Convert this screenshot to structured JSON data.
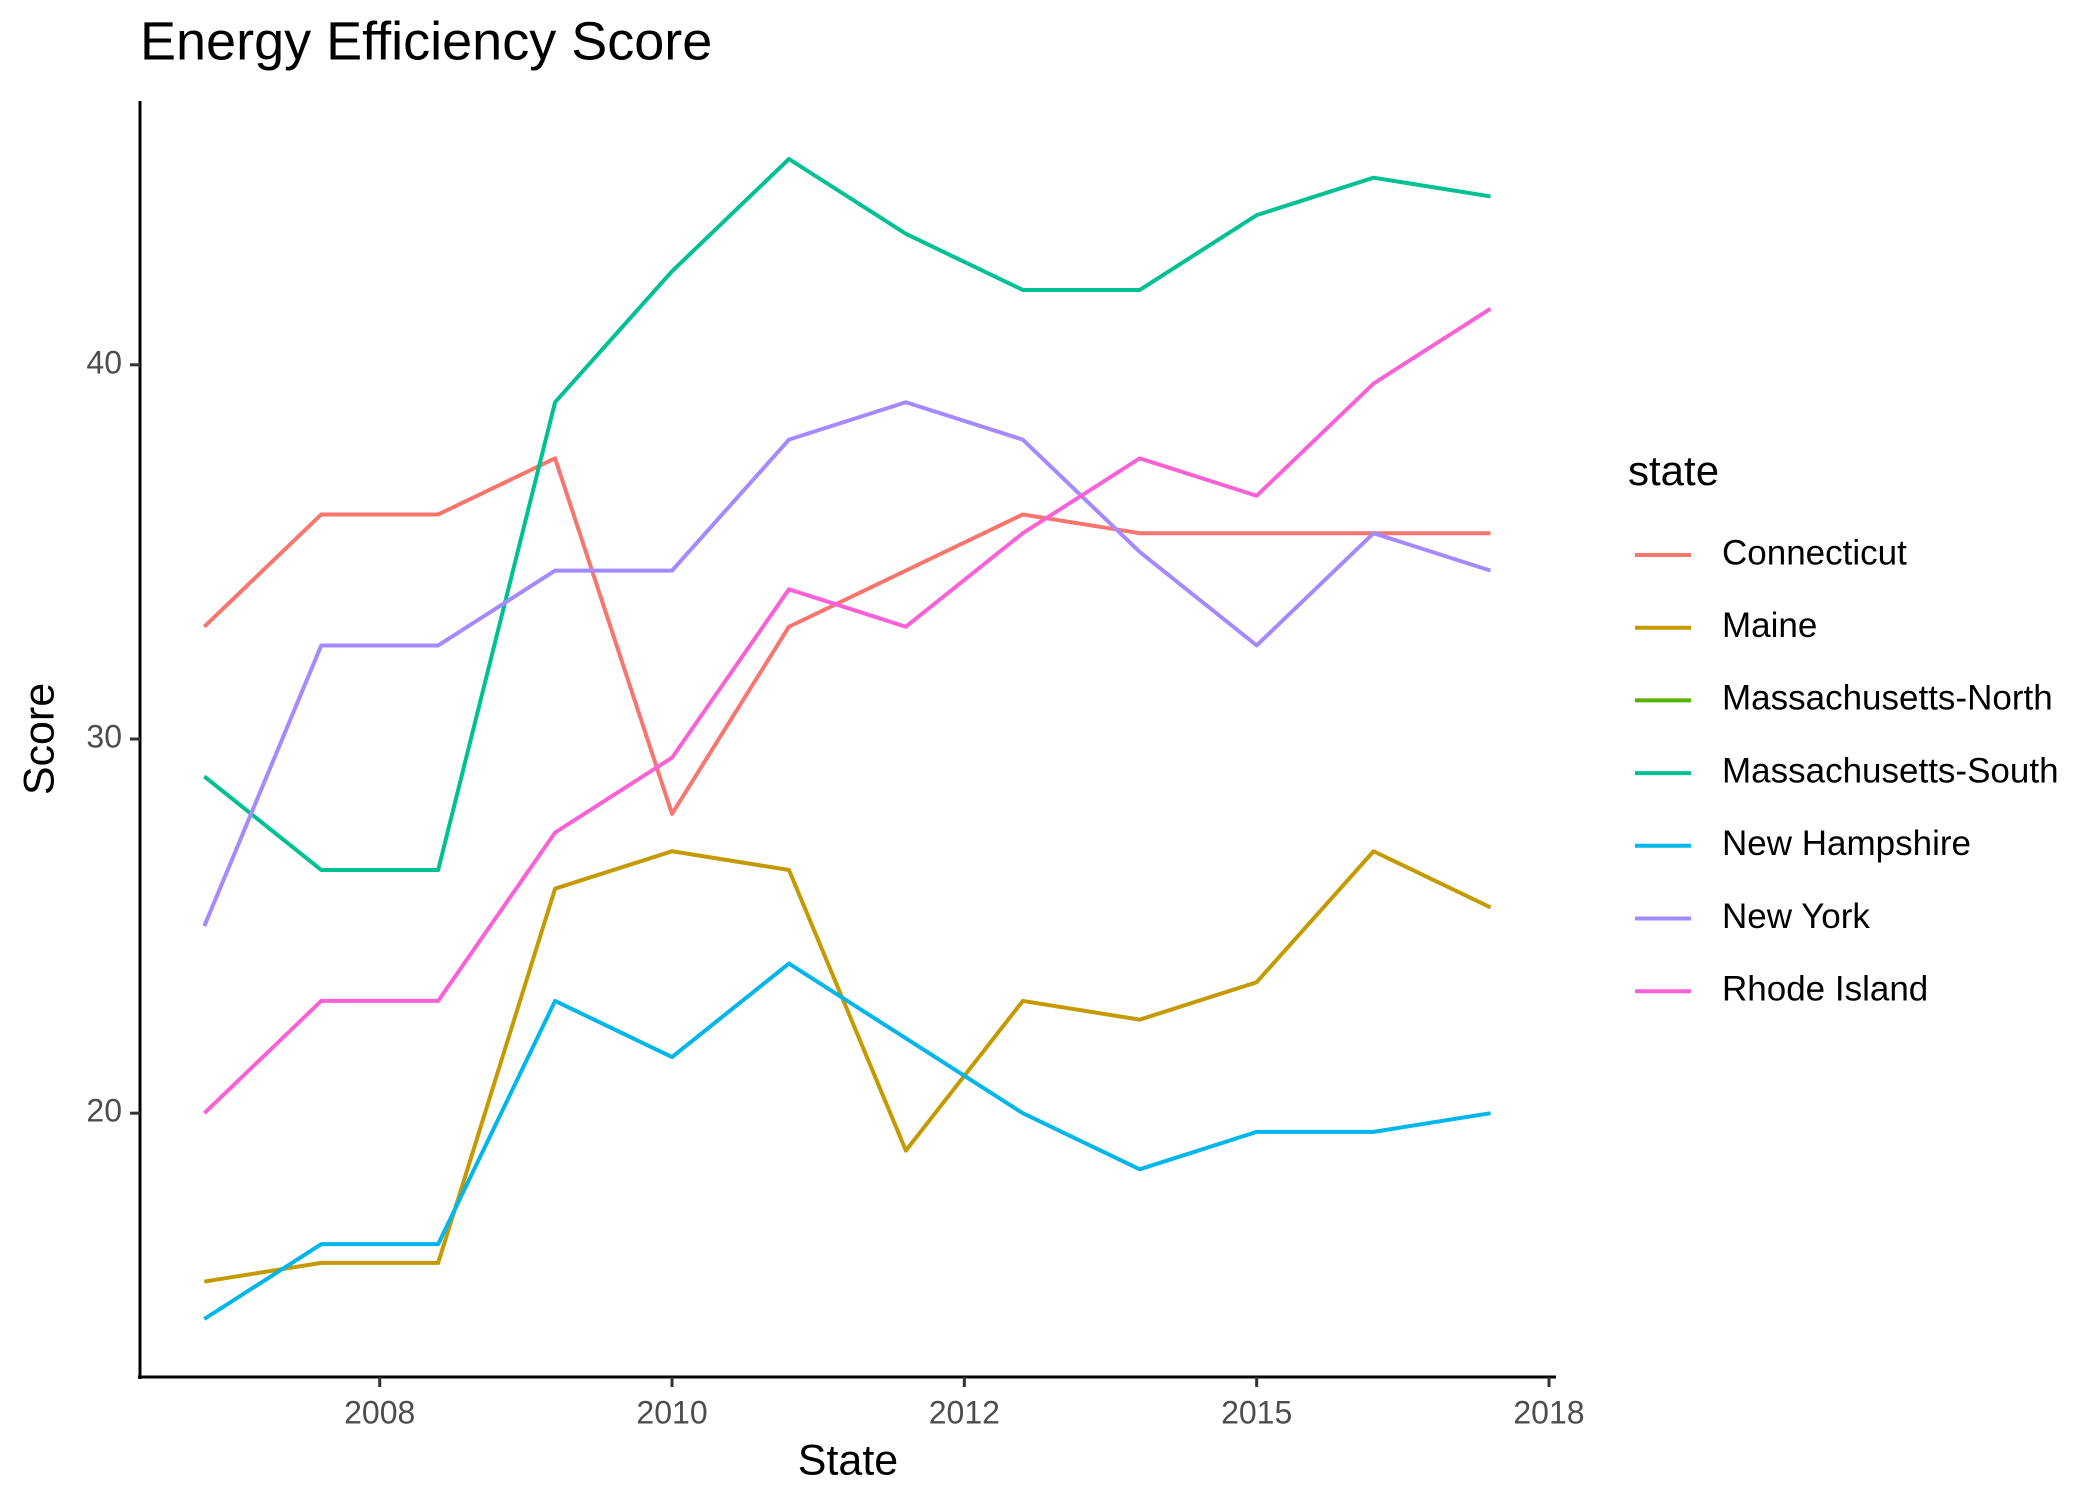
{
  "chart_data": {
    "type": "line",
    "title": "Energy Efficiency Score",
    "xlabel": "State",
    "ylabel": "Score",
    "legend_title": "state",
    "legend": "right",
    "x": [
      0,
      1,
      2,
      3,
      4,
      5,
      6,
      7,
      8,
      9,
      10,
      11
    ],
    "xlim": [
      -0.55,
      11.56
    ],
    "xticks": [
      {
        "value": 1.5,
        "label": "2008"
      },
      {
        "value": 4,
        "label": "2010"
      },
      {
        "value": 6.5,
        "label": "2012"
      },
      {
        "value": 9,
        "label": "2015"
      },
      {
        "value": 11.5,
        "label": "2018"
      }
    ],
    "ylim": [
      12.95,
      47.05
    ],
    "yticks": [
      20,
      30,
      40
    ],
    "series": [
      {
        "name": "Connecticut",
        "color": "#F8766D",
        "values": [
          33,
          36,
          36,
          37.5,
          28,
          33,
          34.5,
          36,
          35.5,
          35.5,
          35.5,
          35.5
        ]
      },
      {
        "name": "Maine",
        "color": "#C49A00",
        "values": [
          15.5,
          16,
          16,
          26,
          27,
          26.5,
          19,
          23,
          22.5,
          23.5,
          27,
          25.5
        ]
      },
      {
        "name": "Massachusetts-North",
        "color": "#53B400",
        "values": [
          null,
          null,
          null,
          null,
          null,
          null,
          null,
          null,
          null,
          null,
          null,
          null
        ]
      },
      {
        "name": "Massachusetts-South",
        "color": "#00C094",
        "values": [
          29,
          26.5,
          26.5,
          39,
          42.5,
          45.5,
          43.5,
          42,
          42,
          44,
          45,
          44.5
        ]
      },
      {
        "name": "New Hampshire",
        "color": "#00B6EB",
        "values": [
          14.5,
          16.5,
          16.5,
          23,
          21.5,
          24,
          22,
          20,
          18.5,
          19.5,
          19.5,
          20
        ]
      },
      {
        "name": "New York",
        "color": "#A58AFF",
        "values": [
          25,
          32.5,
          32.5,
          34.5,
          34.5,
          38,
          39,
          38,
          35,
          32.5,
          35.5,
          34.5
        ]
      },
      {
        "name": "Rhode Island",
        "color": "#FB61D7",
        "values": [
          20,
          23,
          23,
          27.5,
          29.5,
          34,
          33,
          35.5,
          37.5,
          36.5,
          39.5,
          41.5
        ]
      }
    ]
  }
}
